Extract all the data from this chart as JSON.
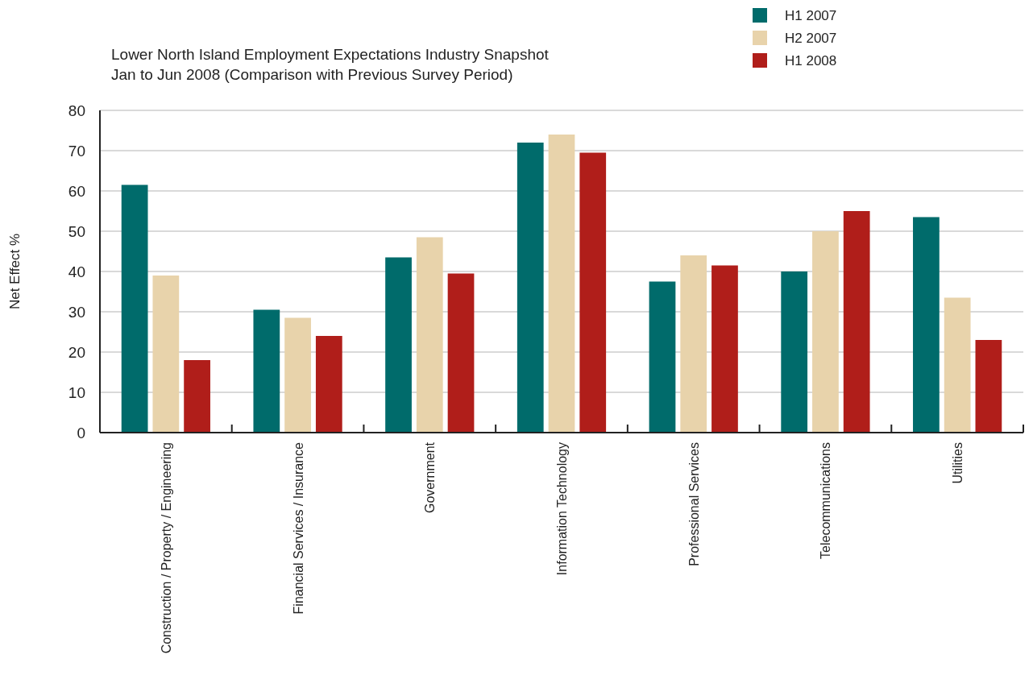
{
  "chart_data": {
    "type": "bar",
    "title": "Lower North Island Employment Expectations Industry Snapshot",
    "subtitle": "Jan to Jun 2008 (Comparison with Previous Survey Period)",
    "ylabel": "Net Effect %",
    "categories": [
      "Construction / Property / Engineering",
      "Financial Services / Insurance",
      "Government",
      "Information Technology",
      "Professional Services",
      "Telecommunications",
      "Utilities"
    ],
    "series": [
      {
        "name": "H1 2007",
        "color": "#006b6b",
        "values": [
          61.5,
          30.5,
          43.5,
          72,
          37.5,
          40,
          53.5
        ]
      },
      {
        "name": "H2 2007",
        "color": "#e8d3ab",
        "values": [
          39,
          28.5,
          48.5,
          74,
          44,
          50,
          33.5
        ]
      },
      {
        "name": "H1 2008",
        "color": "#b01e1a",
        "values": [
          18,
          24,
          39.5,
          69.5,
          41.5,
          55,
          23
        ]
      }
    ],
    "ylim": [
      0,
      80
    ],
    "yticks": [
      0,
      10,
      20,
      30,
      40,
      50,
      60,
      70,
      80
    ],
    "grid": "y",
    "legend": "top right"
  }
}
